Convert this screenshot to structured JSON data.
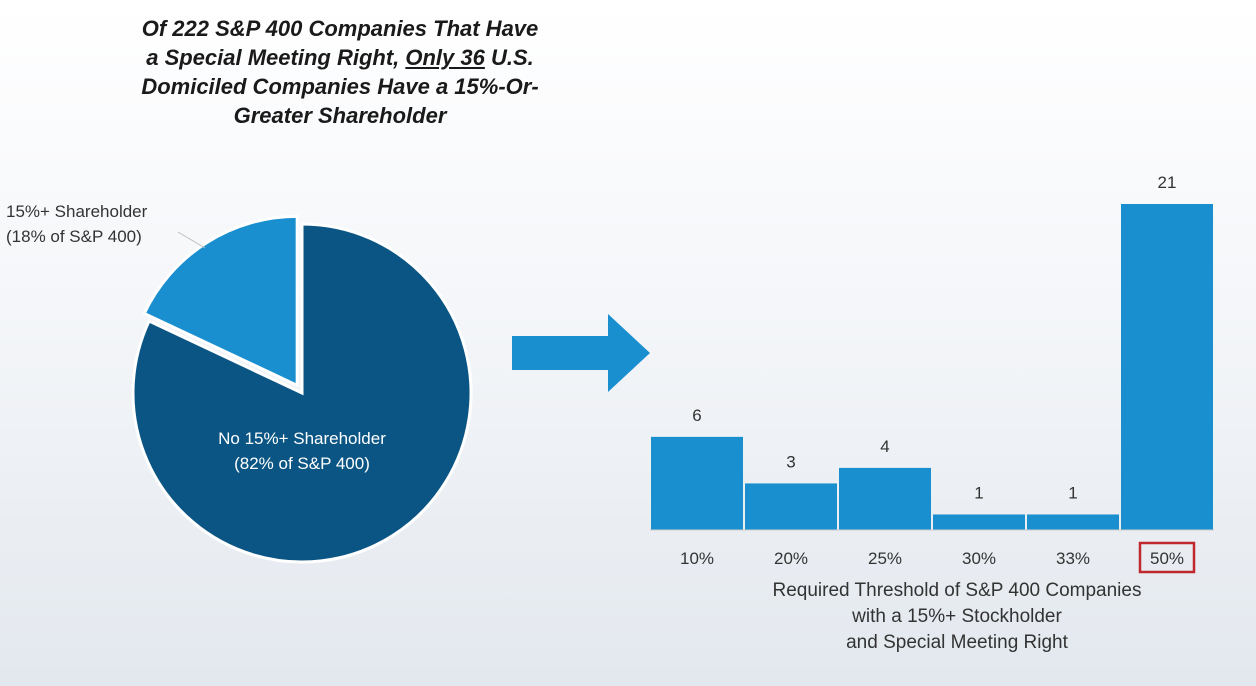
{
  "title": {
    "line1": "Of 222 S&P 400 Companies That Have",
    "line2_pre": "a Special Meeting Right, ",
    "line2_underlined": "Only 36",
    "line2_post": " U.S.",
    "line3": "Domiciled Companies Have a 15%-Or-",
    "line4": "Greater Shareholder"
  },
  "colors": {
    "dark_blue": "#0b5584",
    "light_blue": "#1a8fd0",
    "arrow": "#1a8fd0",
    "highlight_box": "#c0282d"
  },
  "chart_data": [
    {
      "type": "pie",
      "slices": [
        {
          "label_line1": "15%+ Shareholder",
          "label_line2": "(18% of S&P 400)",
          "value": 18,
          "color": "#1a8fd0",
          "exploded": true
        },
        {
          "label_line1": "No 15%+ Shareholder",
          "label_line2": "(82% of S&P 400)",
          "value": 82,
          "color": "#0b5584",
          "exploded": false
        }
      ]
    },
    {
      "type": "bar",
      "categories": [
        "10%",
        "20%",
        "25%",
        "30%",
        "33%",
        "50%"
      ],
      "values": [
        6,
        3,
        4,
        1,
        1,
        21
      ],
      "highlighted_category": "50%",
      "xlabel_lines": [
        "Required Threshold of S&P 400 Companies",
        "with a 15%+ Stockholder",
        "and Special Meeting Right"
      ],
      "ylim": [
        0,
        21
      ]
    }
  ]
}
